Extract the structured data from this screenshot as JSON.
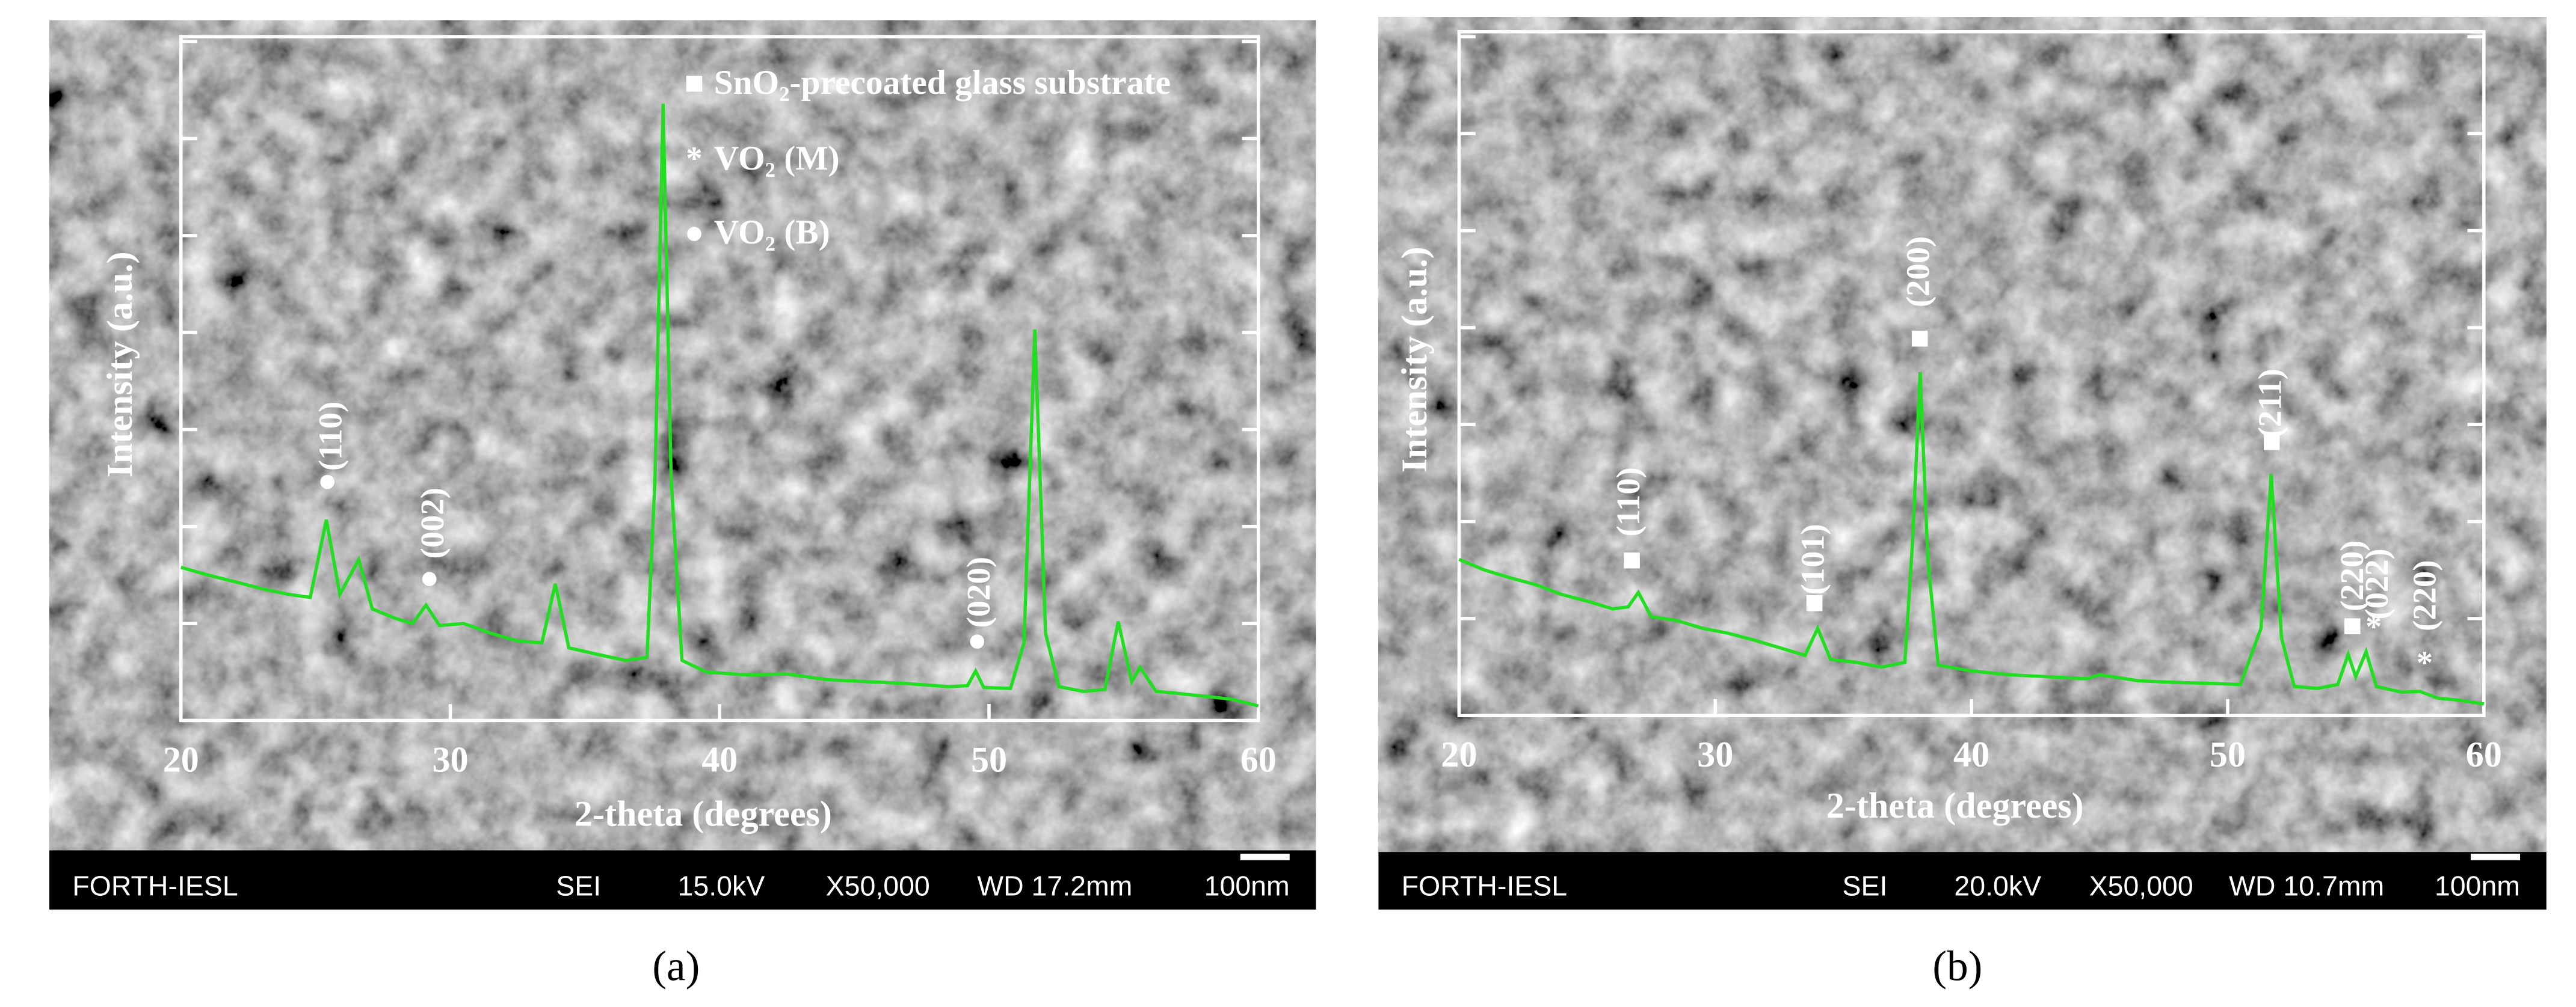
{
  "chart_data": [
    {
      "type": "line",
      "panel_label": "(a)",
      "ylabel": "Intensity (a.u.)",
      "xlabel": "2-theta (degrees)",
      "color": "#22dd22",
      "xlim": [
        20,
        60
      ],
      "xticks": [
        20,
        30,
        40,
        50,
        60
      ],
      "ylim": [
        0,
        7
      ],
      "yticks": [
        0,
        1,
        2,
        3,
        4,
        5,
        6,
        7
      ],
      "x": [
        20,
        21,
        22,
        23,
        24,
        24.8,
        25.4,
        25.9,
        26.6,
        27.1,
        28,
        28.6,
        29.1,
        29.6,
        30.5,
        31.5,
        32.5,
        33.4,
        33.9,
        34.4,
        35.5,
        36.5,
        37.3,
        37.6,
        37.9,
        38.2,
        38.6,
        39.5,
        41,
        42.5,
        44,
        45.5,
        47,
        48.5,
        49.2,
        49.5,
        49.8,
        50.8,
        51.3,
        51.7,
        52.1,
        52.6,
        53.5,
        54.3,
        54.8,
        55.3,
        55.6,
        56.2,
        57,
        58,
        59,
        60
      ],
      "values": [
        1.58,
        1.5,
        1.43,
        1.36,
        1.3,
        1.27,
        2.07,
        1.3,
        1.66,
        1.15,
        1.05,
        1.0,
        1.19,
        0.98,
        1.0,
        0.9,
        0.82,
        0.8,
        1.41,
        0.75,
        0.68,
        0.62,
        0.65,
        2.5,
        6.36,
        2.5,
        0.62,
        0.5,
        0.47,
        0.48,
        0.42,
        0.4,
        0.38,
        0.35,
        0.36,
        0.51,
        0.34,
        0.33,
        0.8,
        4.03,
        0.9,
        0.35,
        0.3,
        0.32,
        1.02,
        0.4,
        0.55,
        0.3,
        0.28,
        0.25,
        0.22,
        0.15
      ],
      "legend": [
        {
          "marker": "■",
          "label": "SnO₂-precoated glass substrate"
        },
        {
          "marker": "*",
          "label": "VO₂ (M)"
        },
        {
          "marker": "●",
          "label": "VO₂ (B)"
        }
      ],
      "annotations": [
        {
          "marker": "●",
          "text": "(110)"
        },
        {
          "marker": "●",
          "text": "(002)"
        },
        {
          "marker": "●",
          "text": "(020)"
        }
      ],
      "sem_info": [
        "FORTH-IESL",
        "SEI",
        "15.0kV",
        "X50,000",
        "WD 17.2mm",
        "100nm"
      ]
    },
    {
      "type": "line",
      "panel_label": "(b)",
      "ylabel": "Intensity (a.u.)",
      "xlabel": "2-theta (degrees)",
      "color": "#22dd22",
      "xlim": [
        20,
        60
      ],
      "xticks": [
        20,
        30,
        40,
        50,
        60
      ],
      "ylim": [
        0,
        7
      ],
      "yticks": [
        0,
        1,
        2,
        3,
        4,
        5,
        6,
        7
      ],
      "x": [
        20,
        21,
        22,
        23,
        24,
        25,
        26,
        26.6,
        27,
        27.5,
        28.5,
        29.5,
        30.5,
        31.5,
        32.5,
        33.5,
        34,
        34.5,
        35.5,
        36.5,
        37.4,
        37.7,
        38,
        38.3,
        38.7,
        40,
        41.5,
        43,
        44.5,
        45,
        46.5,
        48,
        49.5,
        50.5,
        51.3,
        51.7,
        52.1,
        52.6,
        53.5,
        54.3,
        54.7,
        55.0,
        55.4,
        55.8,
        56.8,
        57.5,
        58.2,
        59,
        60
      ],
      "values": [
        1.61,
        1.5,
        1.42,
        1.35,
        1.25,
        1.18,
        1.1,
        1.12,
        1.27,
        1.02,
        0.98,
        0.9,
        0.85,
        0.78,
        0.7,
        0.62,
        0.9,
        0.58,
        0.55,
        0.5,
        0.55,
        1.8,
        3.54,
        1.6,
        0.52,
        0.46,
        0.42,
        0.4,
        0.38,
        0.42,
        0.36,
        0.34,
        0.33,
        0.32,
        0.9,
        2.49,
        0.8,
        0.3,
        0.28,
        0.32,
        0.63,
        0.4,
        0.66,
        0.3,
        0.24,
        0.25,
        0.18,
        0.16,
        0.12
      ],
      "annotations": [
        {
          "marker": "■",
          "text": "(110)"
        },
        {
          "marker": "■",
          "text": "(101)"
        },
        {
          "marker": "■",
          "text": "(200)"
        },
        {
          "marker": "■",
          "text": "(211)"
        },
        {
          "marker": "■",
          "text": "(220)"
        },
        {
          "marker": "*",
          "text": "(022)"
        },
        {
          "marker": "*",
          "text": "(220)"
        }
      ],
      "sem_info": [
        "FORTH-IESL",
        "SEI",
        "20.0kV",
        "X50,000",
        "WD 10.7mm",
        "100nm"
      ]
    }
  ]
}
